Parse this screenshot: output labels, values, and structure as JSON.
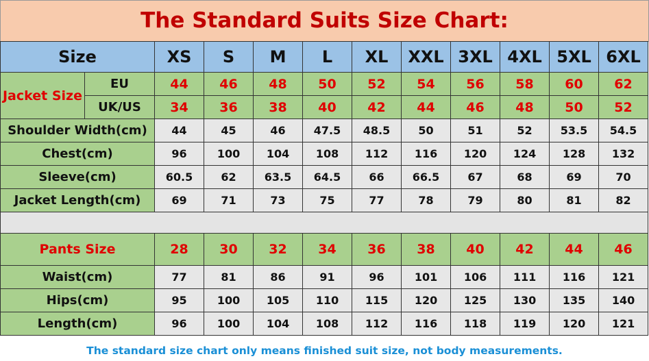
{
  "title": "The Standard Suits Size Chart:",
  "size_label": "Size",
  "sizes": [
    "XS",
    "S",
    "M",
    "L",
    "XL",
    "XXL",
    "3XL",
    "4XL",
    "5XL",
    "6XL"
  ],
  "jacket": {
    "label": "Jacket Size",
    "eu_label": "EU",
    "eu": [
      "44",
      "46",
      "48",
      "50",
      "52",
      "54",
      "56",
      "58",
      "60",
      "62"
    ],
    "us_label": "UK/US",
    "us": [
      "34",
      "36",
      "38",
      "40",
      "42",
      "44",
      "46",
      "48",
      "50",
      "52"
    ]
  },
  "jacket_measurements": [
    {
      "label": "Shoulder Width(cm)",
      "values": [
        "44",
        "45",
        "46",
        "47.5",
        "48.5",
        "50",
        "51",
        "52",
        "53.5",
        "54.5"
      ]
    },
    {
      "label": "Chest(cm)",
      "values": [
        "96",
        "100",
        "104",
        "108",
        "112",
        "116",
        "120",
        "124",
        "128",
        "132"
      ]
    },
    {
      "label": "Sleeve(cm)",
      "values": [
        "60.5",
        "62",
        "63.5",
        "64.5",
        "66",
        "66.5",
        "67",
        "68",
        "69",
        "70"
      ]
    },
    {
      "label": "Jacket Length(cm)",
      "values": [
        "69",
        "71",
        "73",
        "75",
        "77",
        "78",
        "79",
        "80",
        "81",
        "82"
      ]
    }
  ],
  "pants": {
    "label": "Pants Size",
    "values": [
      "28",
      "30",
      "32",
      "34",
      "36",
      "38",
      "40",
      "42",
      "44",
      "46"
    ]
  },
  "pants_measurements": [
    {
      "label": "Waist(cm)",
      "values": [
        "77",
        "81",
        "86",
        "91",
        "96",
        "101",
        "106",
        "111",
        "116",
        "121"
      ]
    },
    {
      "label": "Hips(cm)",
      "values": [
        "95",
        "100",
        "105",
        "110",
        "115",
        "120",
        "125",
        "130",
        "135",
        "140"
      ]
    },
    {
      "label": "Length(cm)",
      "values": [
        "96",
        "100",
        "104",
        "108",
        "112",
        "116",
        "118",
        "119",
        "120",
        "121"
      ]
    }
  ],
  "footer": "The standard size chart only means finished suit size, not body measurements.",
  "colors": {
    "title_bg": "#f8cbad",
    "title_text": "#c00000",
    "header_bg": "#9bc2e6",
    "label_bg": "#a9d08e",
    "size_text": "#e00000",
    "footer_text": "#1a8fd6"
  }
}
